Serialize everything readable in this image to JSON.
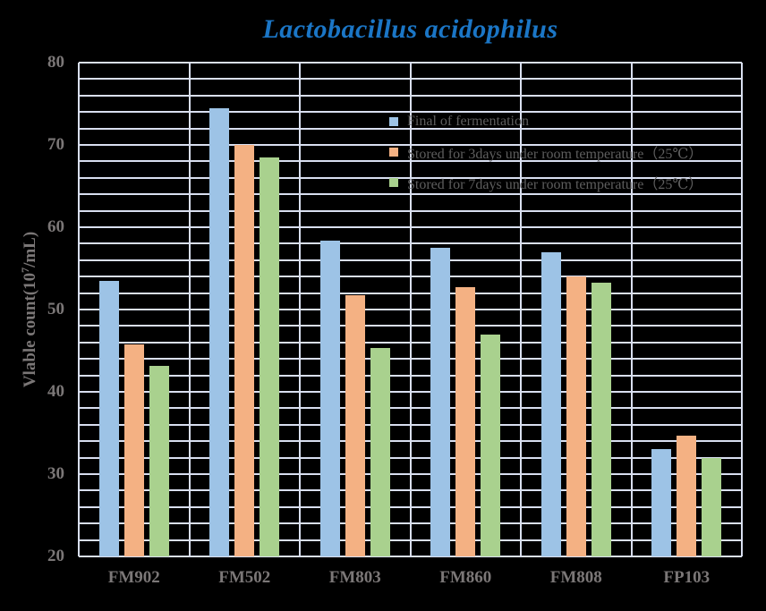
{
  "title": "Lactobacillus acidophilus",
  "colors": {
    "background": "#000000",
    "title": "#1B76C6",
    "grid": "#D9DFF0",
    "axis_text": "#7B7777",
    "legend_text": "#5E5E5E"
  },
  "y_axis": {
    "label": "Vlable count(10⁷/mL)",
    "label_pre": "Vlable count(10",
    "label_sup": "7",
    "label_post": "/mL)"
  },
  "chart_data": {
    "type": "bar",
    "title": "Lactobacillus acidophilus",
    "categories": [
      "FM902",
      "FM502",
      "FM803",
      "FM860",
      "FM808",
      "FP103"
    ],
    "series": [
      {
        "name": "Final of fermentation",
        "color": "#9DC3E6",
        "values": [
          53.5,
          74.5,
          58.4,
          57.5,
          57.0,
          33.0
        ]
      },
      {
        "name": "Stored for 3days under room temperature（25℃）",
        "color": "#F4B183",
        "values": [
          45.8,
          70.0,
          51.7,
          52.7,
          54.0,
          34.7
        ]
      },
      {
        "name": "Stored for 7days under room temperature（25℃）",
        "color": "#A9D18E",
        "values": [
          43.2,
          68.5,
          45.3,
          47.0,
          53.3,
          32.0
        ]
      }
    ],
    "xlabel": "",
    "ylabel": "Vlable count(10⁷/mL)",
    "ylim": [
      20,
      80
    ],
    "ytick_step": 10,
    "grid_minor_step": 2,
    "grid": "on",
    "legend_position": "inside-top-right"
  }
}
